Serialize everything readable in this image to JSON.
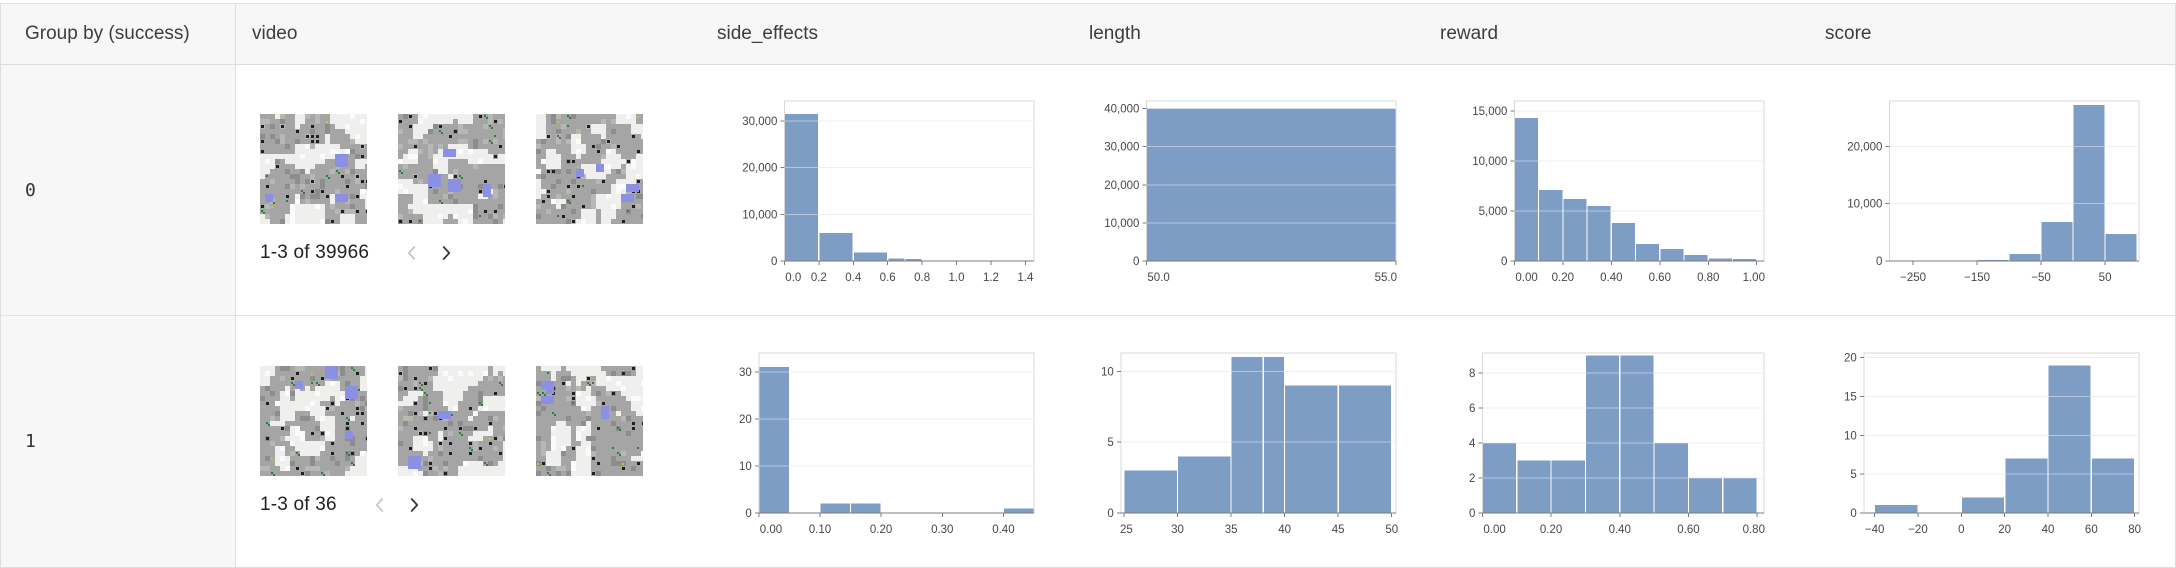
{
  "table": {
    "columns": [
      {
        "label": "Group by (success)"
      },
      {
        "label": "video"
      },
      {
        "label": "side_effects"
      },
      {
        "label": "length"
      },
      {
        "label": "reward"
      },
      {
        "label": "score"
      }
    ],
    "groups": [
      {
        "key": "0",
        "pagination": {
          "label": "1-3 of 39966",
          "prev_enabled": false,
          "next_enabled": true
        },
        "thumbnail_count": 3,
        "thumbnail_kind": "gridworld video frame"
      },
      {
        "key": "1",
        "pagination": {
          "label": "1-3 of 36",
          "prev_enabled": false,
          "next_enabled": true
        },
        "thumbnail_count": 3,
        "thumbnail_kind": "gridworld video frame"
      }
    ]
  },
  "icons": {
    "prev": "chevron-left-icon",
    "next": "chevron-right-icon"
  },
  "colors": {
    "histogram_bar": "#7e9dc5",
    "header_bg": "#f7f7f7",
    "group_cell_bg": "#f7f7f7",
    "border": "#dedede",
    "gridline": "#e4e4e4",
    "axis": "#7c7c7c",
    "axis_text": "#474747",
    "chevron_enabled": "#3a3a3a",
    "chevron_disabled": "#c7c7c7"
  },
  "chart_data": [
    {
      "group": "0",
      "column": "side_effects",
      "type": "bar",
      "xlim": [
        0,
        1.45
      ],
      "ylim": [
        0,
        34300
      ],
      "bin_edges": [
        0,
        0.2,
        0.4,
        0.6,
        0.7,
        0.8
      ],
      "values": [
        31500,
        6000,
        1800,
        550,
        420
      ],
      "xticks": [
        0,
        0.2,
        0.4,
        0.6,
        0.8,
        1.0,
        1.2,
        1.4
      ],
      "xtick_labels": [
        "0.0",
        "0.2",
        "0.4",
        "0.6",
        "0.8",
        "1.0",
        "1.2",
        "1.4"
      ],
      "yticks": [
        0,
        10000,
        20000,
        30000
      ],
      "ytick_labels": [
        "0",
        "10,000",
        "20,000",
        "30,000"
      ]
    },
    {
      "group": "0",
      "column": "length",
      "type": "bar",
      "xlim": [
        50,
        55
      ],
      "ylim": [
        0,
        42000
      ],
      "bin_edges": [
        50,
        55
      ],
      "values": [
        39966
      ],
      "xticks": [
        50,
        55
      ],
      "xtick_labels": [
        "50.0",
        "55.0"
      ],
      "yticks": [
        0,
        10000,
        20000,
        30000,
        40000
      ],
      "ytick_labels": [
        "0",
        "10,000",
        "20,000",
        "30,000",
        "40,000"
      ]
    },
    {
      "group": "0",
      "column": "reward",
      "type": "bar",
      "xlim": [
        0,
        1.03
      ],
      "ylim": [
        0,
        16000
      ],
      "bin_edges": [
        0,
        0.1,
        0.2,
        0.3,
        0.4,
        0.5,
        0.6,
        0.7,
        0.8,
        0.9,
        1.0
      ],
      "values": [
        14300,
        7100,
        6200,
        5500,
        3800,
        1700,
        1200,
        600,
        250,
        200
      ],
      "xticks": [
        0,
        0.2,
        0.4,
        0.6,
        0.8,
        1.0
      ],
      "xtick_labels": [
        "0.00",
        "0.20",
        "0.40",
        "0.60",
        "0.80",
        "1.00"
      ],
      "yticks": [
        0,
        5000,
        10000,
        15000
      ],
      "ytick_labels": [
        "0",
        "5,000",
        "10,000",
        "15,000"
      ]
    },
    {
      "group": "0",
      "column": "score",
      "type": "bar",
      "xlim": [
        -287,
        103
      ],
      "ylim": [
        0,
        27900
      ],
      "bin_edges": [
        -150,
        -100,
        -50,
        0,
        50,
        100
      ],
      "values": [
        200,
        1200,
        6800,
        27200,
        4700
      ],
      "xticks": [
        -250,
        -150,
        -50,
        50
      ],
      "xtick_labels": [
        "−250",
        "−150",
        "−50",
        "50"
      ],
      "yticks": [
        0,
        10000,
        20000
      ],
      "ytick_labels": [
        "0",
        "10,000",
        "20,000"
      ]
    },
    {
      "group": "1",
      "column": "side_effects",
      "type": "bar",
      "xlim": [
        0,
        0.45
      ],
      "ylim": [
        0,
        34
      ],
      "bin_edges": [
        0,
        0.05,
        0.1,
        0.15,
        0.2,
        0.4,
        0.45
      ],
      "values": [
        31,
        0,
        2,
        2,
        0,
        1
      ],
      "xticks": [
        0,
        0.1,
        0.2,
        0.3,
        0.4
      ],
      "xtick_labels": [
        "0.00",
        "0.10",
        "0.20",
        "0.30",
        "0.40"
      ],
      "yticks": [
        0,
        10,
        20,
        30
      ],
      "ytick_labels": [
        "0",
        "10",
        "20",
        "30"
      ]
    },
    {
      "group": "1",
      "column": "length",
      "type": "bar",
      "xlim": [
        24.7,
        50.4
      ],
      "ylim": [
        0,
        11.3
      ],
      "bin_edges": [
        25,
        30,
        35,
        38,
        40,
        45,
        50
      ],
      "values": [
        3,
        4,
        11,
        11,
        9,
        9
      ],
      "xticks": [
        25,
        30,
        35,
        40,
        45,
        50
      ],
      "xtick_labels": [
        "25",
        "30",
        "35",
        "40",
        "45",
        "50"
      ],
      "yticks": [
        0,
        5,
        10
      ],
      "ytick_labels": [
        "0",
        "5",
        "10"
      ]
    },
    {
      "group": "1",
      "column": "reward",
      "type": "bar",
      "xlim": [
        0,
        0.82
      ],
      "ylim": [
        0,
        9.15
      ],
      "bin_edges": [
        0,
        0.1,
        0.2,
        0.3,
        0.4,
        0.5,
        0.6,
        0.7,
        0.8
      ],
      "values": [
        4,
        3,
        3,
        9,
        9,
        4,
        2,
        2
      ],
      "xticks": [
        0,
        0.2,
        0.4,
        0.6,
        0.8
      ],
      "xtick_labels": [
        "0.00",
        "0.20",
        "0.40",
        "0.60",
        "0.80"
      ],
      "yticks": [
        0,
        2,
        4,
        6,
        8
      ],
      "ytick_labels": [
        "0",
        "2",
        "4",
        "6",
        "8"
      ]
    },
    {
      "group": "1",
      "column": "score",
      "type": "bar",
      "xlim": [
        -45,
        82
      ],
      "ylim": [
        0,
        20.6
      ],
      "bin_edges": [
        -40,
        -20,
        0,
        20,
        40,
        60,
        80
      ],
      "values": [
        1,
        0,
        2,
        7,
        19,
        7
      ],
      "xticks": [
        -40,
        -20,
        0,
        20,
        40,
        60,
        80
      ],
      "xtick_labels": [
        "−40",
        "−20",
        "0",
        "20",
        "40",
        "60",
        "80"
      ],
      "yticks": [
        0,
        5,
        10,
        15,
        20
      ],
      "ytick_labels": [
        "0",
        "5",
        "10",
        "15",
        "20"
      ]
    }
  ]
}
